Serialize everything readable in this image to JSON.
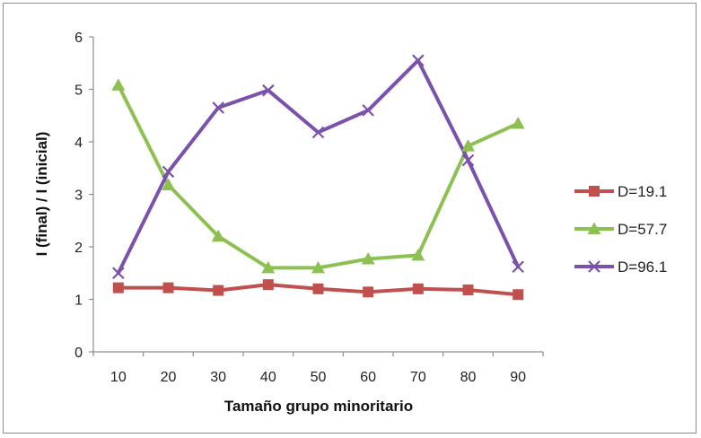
{
  "chart_data": {
    "type": "line",
    "title": "",
    "xlabel": "Tamaño grupo minoritario",
    "ylabel": "I (final) / I (inicial)",
    "categories": [
      "10",
      "20",
      "30",
      "40",
      "50",
      "60",
      "70",
      "80",
      "90"
    ],
    "ylim": [
      0,
      6
    ],
    "yticks": [
      "0",
      "1",
      "2",
      "3",
      "4",
      "5",
      "6"
    ],
    "grid": false,
    "legend_position": "right",
    "series": [
      {
        "name": "D=19.1",
        "color": "#c0504d",
        "marker": "square",
        "values": [
          1.22,
          1.22,
          1.17,
          1.28,
          1.2,
          1.14,
          1.2,
          1.18,
          1.09
        ]
      },
      {
        "name": "D=57.7",
        "color": "#8cc152",
        "marker": "triangle",
        "values": [
          5.08,
          3.18,
          2.2,
          1.6,
          1.6,
          1.77,
          1.84,
          3.92,
          4.35
        ]
      },
      {
        "name": "D=96.1",
        "color": "#7b52ab",
        "marker": "x",
        "values": [
          1.5,
          3.43,
          4.65,
          4.98,
          4.18,
          4.6,
          5.55,
          3.65,
          1.62
        ]
      }
    ]
  }
}
